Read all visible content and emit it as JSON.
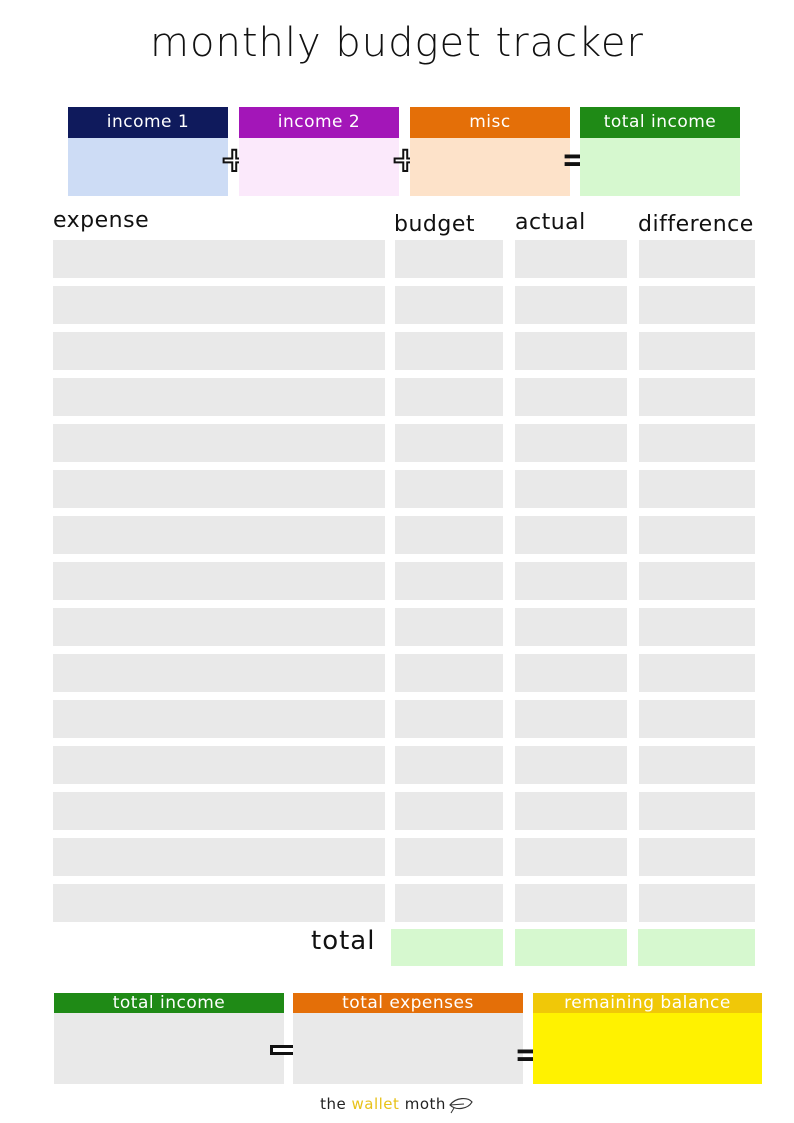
{
  "title": "monthly budget tracker",
  "colors": {
    "income1_head": "#0f1a5c",
    "income1_body": "#cddcf5",
    "income2_head": "#a316b8",
    "income2_body": "#fbe9fb",
    "misc_head": "#e46f08",
    "misc_body": "#fde2c9",
    "total_head": "#1f8a16",
    "total_body": "#d6f8cf",
    "cell": "#e9e9e9",
    "sum_income_head": "#1f8a16",
    "sum_expenses_head": "#e46f08",
    "sum_remaining_head": "#f0c808",
    "sum_remaining_body": "#fff200",
    "sum_body": "#e9e9e9"
  },
  "income": {
    "boxes": [
      {
        "label": "income 1"
      },
      {
        "label": "income 2"
      },
      {
        "label": "misc"
      },
      {
        "label": "total income"
      }
    ],
    "plus_1": "+",
    "plus_2": "+",
    "equals": "="
  },
  "table": {
    "headers": {
      "expense": "expense",
      "budget": "budget",
      "actual": "actual",
      "difference": "difference"
    },
    "row_count": 15,
    "total_label": "total"
  },
  "summary": {
    "total_income": "total income",
    "total_expenses": "total expenses",
    "remaining_balance": "remaining balance",
    "equals": "="
  },
  "footer": {
    "the": "the",
    "wallet": "wallet",
    "moth": "moth"
  }
}
